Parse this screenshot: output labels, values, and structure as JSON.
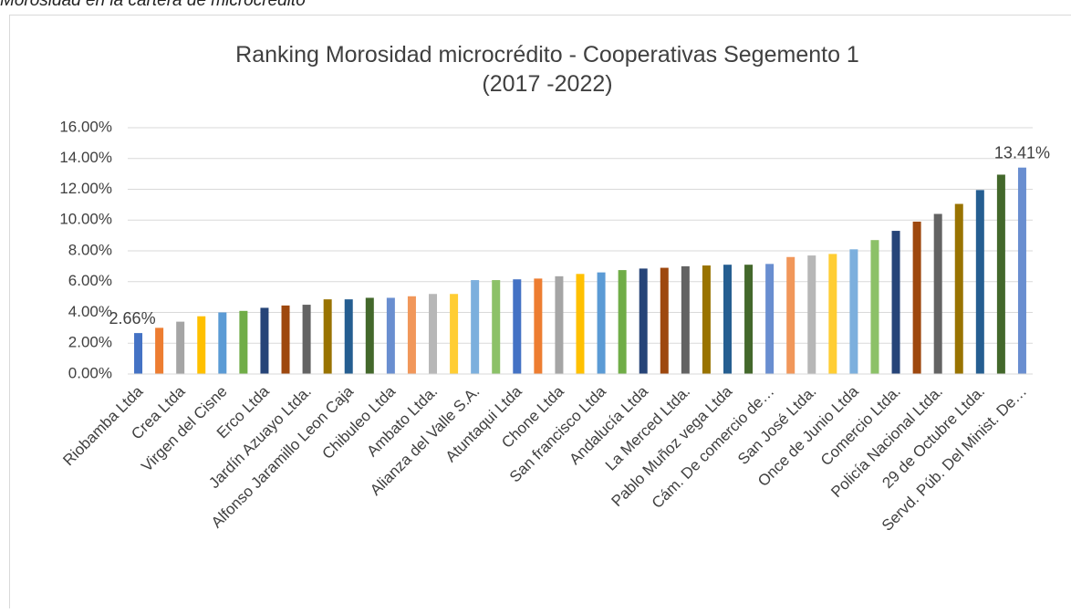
{
  "caption": "Morosidad en la cartera de microcrédito",
  "chart_data": {
    "type": "bar",
    "title": [
      "Ranking Morosidad microcrédito - Cooperativas Segemento 1",
      "(2017 -2022)"
    ],
    "categories": [
      "Riobamba Ltda",
      null,
      "Crea Ltda",
      null,
      "Virgen del Cisne",
      null,
      "Erco Ltda",
      null,
      "Jardín Azuayo Ltda.",
      null,
      "Alfonso Jaramillo Leon Caja",
      null,
      "Chibuleo Ltda",
      null,
      "Ambato Ltda.",
      null,
      "Alianza del Valle S.A.",
      null,
      "Atuntaqui Ltda",
      null,
      "Chone Ltda",
      null,
      "San francisco Ltda",
      null,
      "Andalucía Ltda",
      null,
      "La Merced Ltda.",
      null,
      "Pablo Muñoz vega Ltda",
      null,
      "Cám. De comercio de…",
      null,
      "San José Ltda.",
      null,
      "Once de Junio Ltda",
      null,
      "Comercio Ltda.",
      null,
      "Policía Nacional Ltda.",
      null,
      "29 de Octubre Ltda.",
      null,
      "Servd. Púb. Del Minist. De…"
    ],
    "values": [
      2.66,
      3.0,
      3.4,
      3.75,
      4.0,
      4.1,
      4.3,
      4.45,
      4.5,
      4.85,
      4.85,
      4.95,
      4.95,
      5.05,
      5.2,
      5.2,
      6.1,
      6.1,
      6.15,
      6.2,
      6.35,
      6.5,
      6.6,
      6.75,
      6.85,
      6.9,
      7.0,
      7.05,
      7.1,
      7.1,
      7.15,
      7.6,
      7.7,
      7.8,
      8.1,
      8.7,
      9.3,
      9.9,
      10.4,
      11.05,
      11.95,
      12.95,
      13.41
    ],
    "value_labels": [
      "2.66%",
      null,
      null,
      null,
      null,
      null,
      null,
      null,
      null,
      null,
      null,
      null,
      null,
      null,
      null,
      null,
      null,
      null,
      null,
      null,
      null,
      null,
      null,
      null,
      null,
      null,
      null,
      null,
      null,
      null,
      null,
      null,
      null,
      null,
      null,
      null,
      null,
      null,
      null,
      null,
      null,
      null,
      "13.41%"
    ],
    "colors": [
      "#4472c4",
      "#ed7d31",
      "#a5a5a5",
      "#ffc000",
      "#5b9bd5",
      "#70ad47",
      "#264478",
      "#9e480e",
      "#636363",
      "#997300",
      "#255e91",
      "#43682b",
      "#698ed0",
      "#f1975a",
      "#b7b7b7",
      "#ffcd33",
      "#7cafdd",
      "#8cc168",
      "#4472c4",
      "#ed7d31",
      "#a5a5a5",
      "#ffc000",
      "#5b9bd5",
      "#70ad47",
      "#264478",
      "#9e480e",
      "#636363",
      "#997300",
      "#255e91",
      "#43682b",
      "#698ed0",
      "#f1975a",
      "#b7b7b7",
      "#ffcd33",
      "#7cafdd",
      "#8cc168",
      "#264478",
      "#9e480e",
      "#636363",
      "#997300",
      "#255e91",
      "#43682b",
      "#698ed0"
    ],
    "ylim": [
      0,
      16
    ],
    "yticks": [
      {
        "value": 0,
        "label": "0.00%"
      },
      {
        "value": 2,
        "label": "2.00%"
      },
      {
        "value": 4,
        "label": "4.00%"
      },
      {
        "value": 6,
        "label": "6.00%"
      },
      {
        "value": 8,
        "label": "8.00%"
      },
      {
        "value": 10,
        "label": "10.00%"
      },
      {
        "value": 12,
        "label": "12.00%"
      },
      {
        "value": 14,
        "label": "14.00%"
      },
      {
        "value": 16,
        "label": "16.00%"
      }
    ],
    "grid": true
  }
}
